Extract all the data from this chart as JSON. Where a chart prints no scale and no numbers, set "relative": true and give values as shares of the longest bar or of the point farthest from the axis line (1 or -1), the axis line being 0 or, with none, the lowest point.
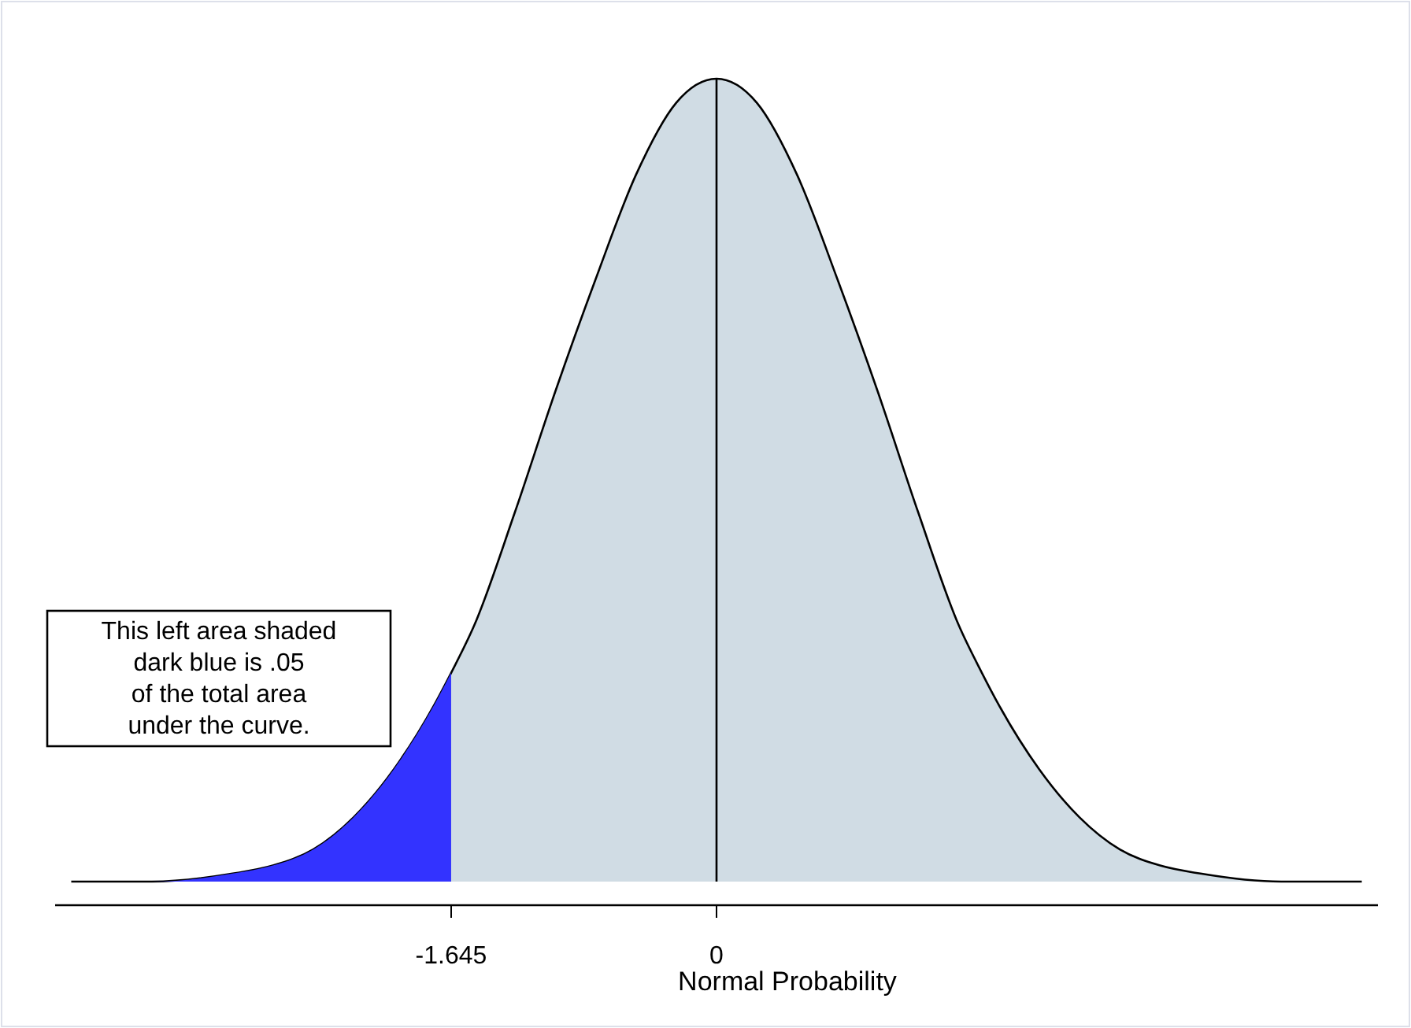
{
  "chart_data": {
    "type": "area",
    "relative": true,
    "xlabel": "Normal Probability",
    "xlim": [
      -4.1,
      4.1
    ],
    "xticks": [
      -1.645,
      0
    ],
    "series": [
      {
        "color": "#d0dce4",
        "x": [
          -4,
          -3.5,
          -3,
          -2.75,
          -2.5,
          -2.25,
          -2,
          -1.75,
          -1.645,
          -1.5,
          -1.25,
          -1,
          -0.75,
          -0.5,
          -0.25,
          0,
          0.25,
          0.5,
          0.75,
          1,
          1.25,
          1.5,
          1.645,
          1.75,
          2,
          2.25,
          2.5,
          2.75,
          3,
          3.5,
          4
        ],
        "values": [
          0,
          0,
          0.01,
          0.02,
          0.04,
          0.08,
          0.14,
          0.22,
          0.26,
          0.32,
          0.46,
          0.61,
          0.75,
          0.88,
          0.97,
          1,
          0.97,
          0.88,
          0.75,
          0.61,
          0.46,
          0.32,
          0.26,
          0.22,
          0.14,
          0.08,
          0.04,
          0.02,
          0.01,
          0,
          0
        ]
      },
      {
        "color": "#3333ff",
        "x": [
          -4,
          -3.5,
          -3,
          -2.75,
          -2.5,
          -2.25,
          -2,
          -1.75,
          -1.645
        ],
        "values": [
          0,
          0,
          0.01,
          0.02,
          0.04,
          0.08,
          0.14,
          0.22,
          0.26
        ]
      }
    ],
    "ref_lines": [
      {
        "axis": "x",
        "value": 0,
        "color": "#000000"
      }
    ],
    "annotations": [
      "This left area shaded\ndark blue is .05\nof the total area\nunder the curve."
    ],
    "grid": false
  }
}
